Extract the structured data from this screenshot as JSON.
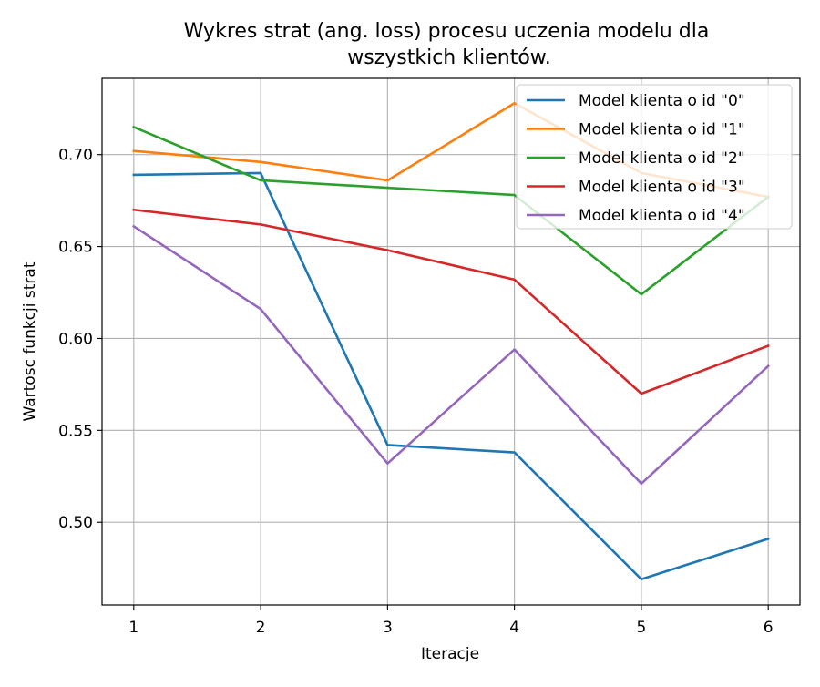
{
  "chart_data": {
    "type": "line",
    "title": [
      "Wykres strat (ang. loss) procesu uczenia modelu dla",
      "wszystkich klientów."
    ],
    "xlabel": "Iteracje",
    "ylabel": "Wartosc funkcji strat",
    "x": [
      1,
      2,
      3,
      4,
      5,
      6
    ],
    "xticks": [
      "1",
      "2",
      "3",
      "4",
      "5",
      "6"
    ],
    "yticks": [
      "0.50",
      "0.55",
      "0.60",
      "0.65",
      "0.70"
    ],
    "ytick_values": [
      0.5,
      0.55,
      0.6,
      0.65,
      0.7
    ],
    "xlim": [
      0.75,
      6.25
    ],
    "ylim": [
      0.455,
      0.7415
    ],
    "grid": true,
    "legend_position": "top-right",
    "series": [
      {
        "name": "Model klienta o id \"0\"",
        "color": "#1f77b4",
        "values": [
          0.689,
          0.69,
          0.542,
          0.538,
          0.469,
          0.491
        ]
      },
      {
        "name": "Model klienta o id \"1\"",
        "color": "#ff7f0e",
        "values": [
          0.702,
          0.696,
          0.686,
          0.728,
          0.69,
          0.677
        ]
      },
      {
        "name": "Model klienta o id \"2\"",
        "color": "#2ca02c",
        "values": [
          0.715,
          0.686,
          0.682,
          0.678,
          0.624,
          0.677
        ]
      },
      {
        "name": "Model klienta o id \"3\"",
        "color": "#d62728",
        "values": [
          0.67,
          0.662,
          0.648,
          0.632,
          0.57,
          0.596
        ]
      },
      {
        "name": "Model klienta o id \"4\"",
        "color": "#9467bd",
        "values": [
          0.661,
          0.616,
          0.532,
          0.594,
          0.521,
          0.585
        ]
      }
    ]
  }
}
